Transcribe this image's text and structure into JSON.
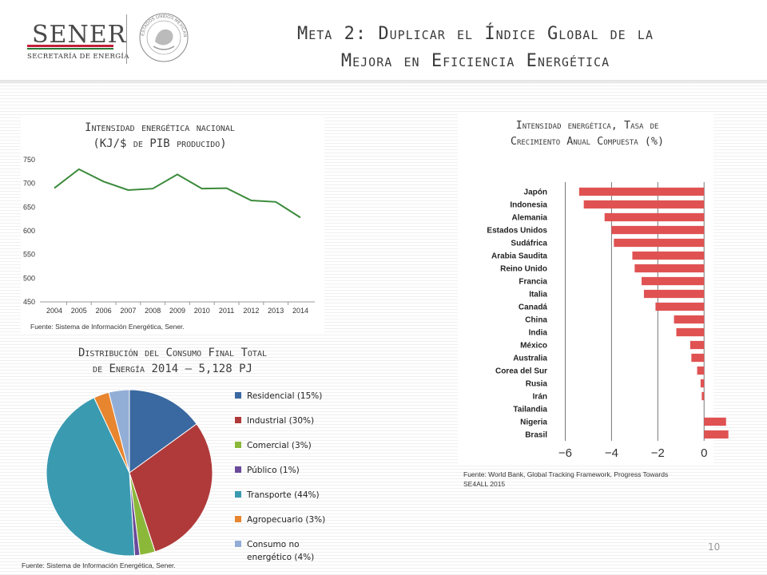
{
  "header": {
    "logo_name": "SENER",
    "logo_subtitle": "SECRETARÍA DE ENERGÍA",
    "seal_text": "ESTADOS UNIDOS MEXICANOS",
    "title_line1": "Meta 2: Duplicar el Índice Global de la",
    "title_line2": "Mejora en Eficiencia Energética",
    "brand_colors": {
      "red": "#c21f3a",
      "green": "#2a7a3a"
    }
  },
  "line_panel": {
    "title_line1": "Intensidad energética nacional",
    "title_line2": "(KJ/$ de PIB producido)",
    "source": "Fuente: Sistema de Información Energética, Sener."
  },
  "pie_panel": {
    "title_line1": "Distribución del Consumo Final Total",
    "title_line2": "de Energía 2014 – 5,128 PJ",
    "source": "Fuente: Sistema de Información Energética, Sener."
  },
  "bar_panel": {
    "title_line1": "Intensidad energética, Tasa de",
    "title_line2": "Crecimiento Anual Compuesta (%)",
    "source_line1": "Fuente: World Bank, Global Tracking Framework, Progress Towards",
    "source_line2": "SE4ALL 2015"
  },
  "page_number": "10",
  "chart_data": [
    {
      "type": "line",
      "title": "Intensidad energética nacional (KJ/$ de PIB producido)",
      "x": [
        "2004",
        "2005",
        "2006",
        "2007",
        "2008",
        "2009",
        "2010",
        "2011",
        "2012",
        "2013",
        "2014"
      ],
      "series": [
        {
          "values": [
            690,
            730,
            704,
            686,
            689,
            719,
            689,
            690,
            664,
            661,
            628
          ],
          "color": "#3a8a3a"
        }
      ],
      "ylim": [
        450,
        750
      ],
      "yticks": [
        450,
        500,
        550,
        600,
        650,
        700,
        750
      ],
      "grid": false
    },
    {
      "type": "pie",
      "title": "Distribución del Consumo Final Total de Energía 2014 – 5,128 PJ",
      "legend_position": "right",
      "slices": [
        {
          "label": "Residencial (15%)",
          "value": 15,
          "color": "#3a68a0"
        },
        {
          "label": "Industrial (30%)",
          "value": 30,
          "color": "#b03a3a"
        },
        {
          "label": "Comercial (3%)",
          "value": 3,
          "color": "#8cb83a"
        },
        {
          "label": "Público (1%)",
          "value": 1,
          "color": "#6a4a9a"
        },
        {
          "label": "Transporte (44%)",
          "value": 44,
          "color": "#3a9ab0"
        },
        {
          "label": "Agropecuario (3%)",
          "value": 3,
          "color": "#e8852f"
        },
        {
          "label": "Consumo no energético (4%)",
          "value": 4,
          "color": "#93aed6"
        }
      ]
    },
    {
      "type": "bar",
      "orientation": "horizontal",
      "title": "Intensidad energética, Tasa de Crecimiento Anual Compuesta (%)",
      "categories": [
        "Japón",
        "Indonesia",
        "Alemania",
        "Estados Unidos",
        "Sudáfrica",
        "Arabia Saudita",
        "Reino Unido",
        "Francia",
        "Italia",
        "Canadá",
        "China",
        "India",
        "México",
        "Australia",
        "Corea del Sur",
        "Rusia",
        "Irán",
        "Tailandia",
        "Nigeria",
        "Brasil"
      ],
      "values": [
        -5.4,
        -5.2,
        -4.3,
        -4.0,
        -3.9,
        -3.1,
        -3.0,
        -2.7,
        -2.6,
        -2.1,
        -1.3,
        -1.2,
        -0.6,
        -0.55,
        -0.3,
        -0.15,
        -0.1,
        0.0,
        0.95,
        1.05
      ],
      "xlim": [
        -6.5,
        1.2
      ],
      "xticks": [
        -6,
        -4,
        -2,
        0
      ],
      "bar_color": "#e05252",
      "grid": true
    }
  ]
}
